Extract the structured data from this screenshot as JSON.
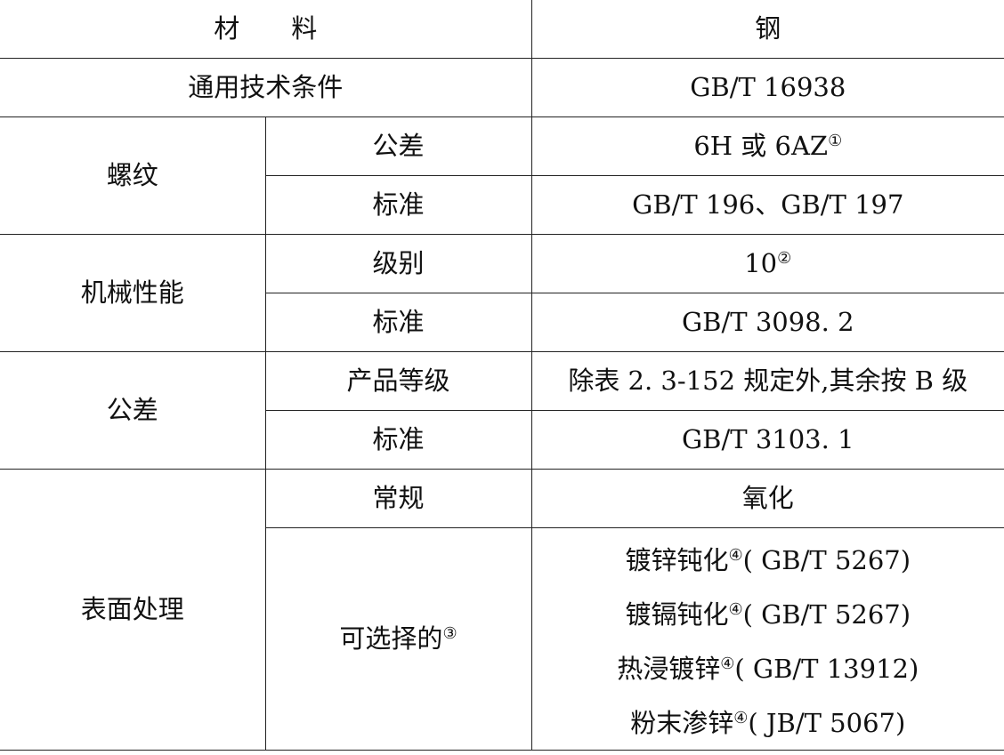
{
  "header": {
    "material_label": "材　　料",
    "material_value": "钢"
  },
  "general": {
    "label": "通用技术条件",
    "value": "GB/T 16938"
  },
  "thread": {
    "label": "螺纹",
    "tolerance_label": "公差",
    "tolerance_value": "6H 或 6AZ",
    "tolerance_note": "①",
    "standard_label": "标准",
    "standard_value": "GB/T 196、GB/T 197"
  },
  "mechanical": {
    "label": "机械性能",
    "grade_label": "级别",
    "grade_value": "10",
    "grade_note": "②",
    "standard_label": "标准",
    "standard_value": "GB/T 3098. 2"
  },
  "tolerance": {
    "label": "公差",
    "product_grade_label": "产品等级",
    "product_grade_value": "除表 2. 3-152 规定外,其余按 B 级",
    "standard_label": "标准",
    "standard_value": "GB/T 3103. 1"
  },
  "surface": {
    "label": "表面处理",
    "regular_label": "常规",
    "regular_value": "氧化",
    "optional_label": "可选择的",
    "optional_note": "③",
    "options": [
      {
        "name": "镀锌钝化",
        "note": "④",
        "std": "( GB/T 5267)"
      },
      {
        "name": "镀镉钝化",
        "note": "④",
        "std": "( GB/T 5267)"
      },
      {
        "name": "热浸镀锌",
        "note": "④",
        "std": "( GB/T 13912)"
      },
      {
        "name": "粉末渗锌",
        "note": "④",
        "std": "( JB/T 5067)"
      }
    ]
  }
}
